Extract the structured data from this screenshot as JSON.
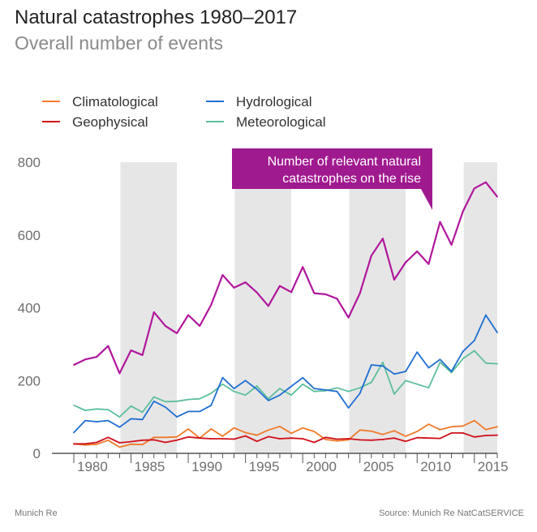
{
  "header": {
    "title": "Natural catastrophes 1980–2017",
    "subtitle": "Overall number of events"
  },
  "footer": {
    "left": "Munich Re",
    "right": "Source: Munich Re NatCatSERVICE"
  },
  "colors": {
    "Climatological": "#f07a2a",
    "Geophysical": "#d0111b",
    "Hydrological": "#1f6fd1",
    "Meteorological": "#5dbf9c",
    "Total": "#b0179c",
    "band": "#e6e6e6",
    "axis": "#555555"
  },
  "chart_data": {
    "type": "line",
    "x": [
      1980,
      1981,
      1982,
      1983,
      1984,
      1985,
      1986,
      1987,
      1988,
      1989,
      1990,
      1991,
      1992,
      1993,
      1994,
      1995,
      1996,
      1997,
      1998,
      1999,
      2000,
      2001,
      2002,
      2003,
      2004,
      2005,
      2006,
      2007,
      2008,
      2009,
      2010,
      2011,
      2012,
      2013,
      2014,
      2015,
      2016,
      2017
    ],
    "ylim": [
      0,
      800
    ],
    "yticks": [
      0,
      200,
      400,
      600,
      800
    ],
    "xticks": [
      1980,
      1985,
      1990,
      1995,
      2000,
      2005,
      2010,
      2015
    ],
    "shaded_ranges": [
      [
        1984,
        1989
      ],
      [
        1994,
        1999
      ],
      [
        2004,
        2009
      ],
      [
        2014,
        2017
      ]
    ],
    "legend_position": "top",
    "series": [
      {
        "name": "Climatological",
        "values": [
          26,
          23,
          25,
          36,
          17,
          25,
          24,
          44,
          44,
          45,
          67,
          42,
          67,
          47,
          70,
          57,
          50,
          64,
          74,
          55,
          70,
          60,
          38,
          34,
          37,
          64,
          61,
          52,
          62,
          47,
          60,
          80,
          65,
          73,
          75,
          90,
          65,
          73
        ]
      },
      {
        "name": "Geophysical",
        "values": [
          26,
          26,
          30,
          44,
          29,
          32,
          36,
          37,
          30,
          36,
          45,
          42,
          40,
          40,
          39,
          48,
          33,
          46,
          40,
          42,
          40,
          30,
          44,
          39,
          40,
          37,
          36,
          38,
          42,
          33,
          43,
          42,
          41,
          56,
          56,
          45,
          49,
          50
        ]
      },
      {
        "name": "Hydrological",
        "values": [
          57,
          90,
          87,
          90,
          72,
          95,
          93,
          143,
          127,
          100,
          115,
          115,
          132,
          208,
          178,
          200,
          176,
          145,
          160,
          184,
          208,
          178,
          174,
          170,
          125,
          165,
          243,
          240,
          218,
          225,
          278,
          235,
          258,
          225,
          280,
          310,
          380,
          332
        ]
      },
      {
        "name": "Meteorological",
        "values": [
          132,
          118,
          122,
          120,
          100,
          130,
          113,
          155,
          142,
          143,
          148,
          150,
          165,
          190,
          170,
          160,
          185,
          150,
          178,
          160,
          190,
          170,
          172,
          180,
          170,
          180,
          195,
          250,
          163,
          200,
          190,
          180,
          250,
          222,
          260,
          282,
          248,
          246
        ]
      },
      {
        "name": "",
        "values": [
          243,
          258,
          265,
          295,
          220,
          283,
          270,
          388,
          350,
          330,
          380,
          350,
          408,
          490,
          455,
          470,
          442,
          405,
          460,
          443,
          512,
          440,
          437,
          425,
          373,
          440,
          543,
          590,
          477,
          525,
          555,
          520,
          636,
          573,
          665,
          728,
          745,
          705
        ]
      }
    ],
    "annotation": {
      "text_line1": "Number of relevant natural",
      "text_line2": "catastrophes on the rise"
    }
  }
}
